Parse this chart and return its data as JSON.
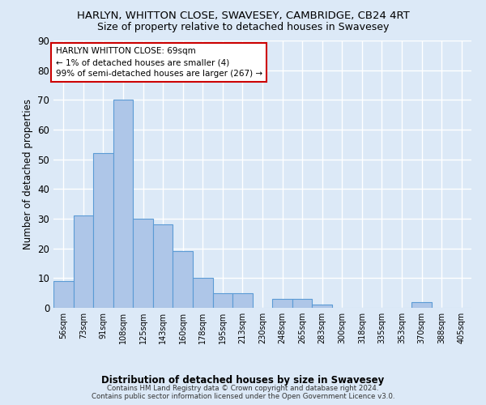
{
  "title": "HARLYN, WHITTON CLOSE, SWAVESEY, CAMBRIDGE, CB24 4RT",
  "subtitle": "Size of property relative to detached houses in Swavesey",
  "xlabel": "Distribution of detached houses by size in Swavesey",
  "ylabel": "Number of detached properties",
  "bin_labels": [
    "56sqm",
    "73sqm",
    "91sqm",
    "108sqm",
    "125sqm",
    "143sqm",
    "160sqm",
    "178sqm",
    "195sqm",
    "213sqm",
    "230sqm",
    "248sqm",
    "265sqm",
    "283sqm",
    "300sqm",
    "318sqm",
    "335sqm",
    "353sqm",
    "370sqm",
    "388sqm",
    "405sqm"
  ],
  "bar_values": [
    9,
    31,
    52,
    70,
    30,
    28,
    19,
    10,
    5,
    5,
    0,
    3,
    3,
    1,
    0,
    0,
    0,
    0,
    2,
    0,
    0
  ],
  "bar_color": "#aec6e8",
  "bar_edge_color": "#5b9bd5",
  "background_color": "#dce9f7",
  "plot_bg_color": "#dce9f7",
  "grid_color": "#ffffff",
  "ylim": [
    0,
    90
  ],
  "yticks": [
    0,
    10,
    20,
    30,
    40,
    50,
    60,
    70,
    80,
    90
  ],
  "annotation_title": "HARLYN WHITTON CLOSE: 69sqm",
  "annotation_line1": "← 1% of detached houses are smaller (4)",
  "annotation_line2": "99% of semi-detached houses are larger (267) →",
  "annotation_box_color": "#ffffff",
  "annotation_box_edge_color": "#cc0000",
  "footer": "Contains HM Land Registry data © Crown copyright and database right 2024.\nContains public sector information licensed under the Open Government Licence v3.0.",
  "property_sqm": 69,
  "property_bin_index": 1
}
